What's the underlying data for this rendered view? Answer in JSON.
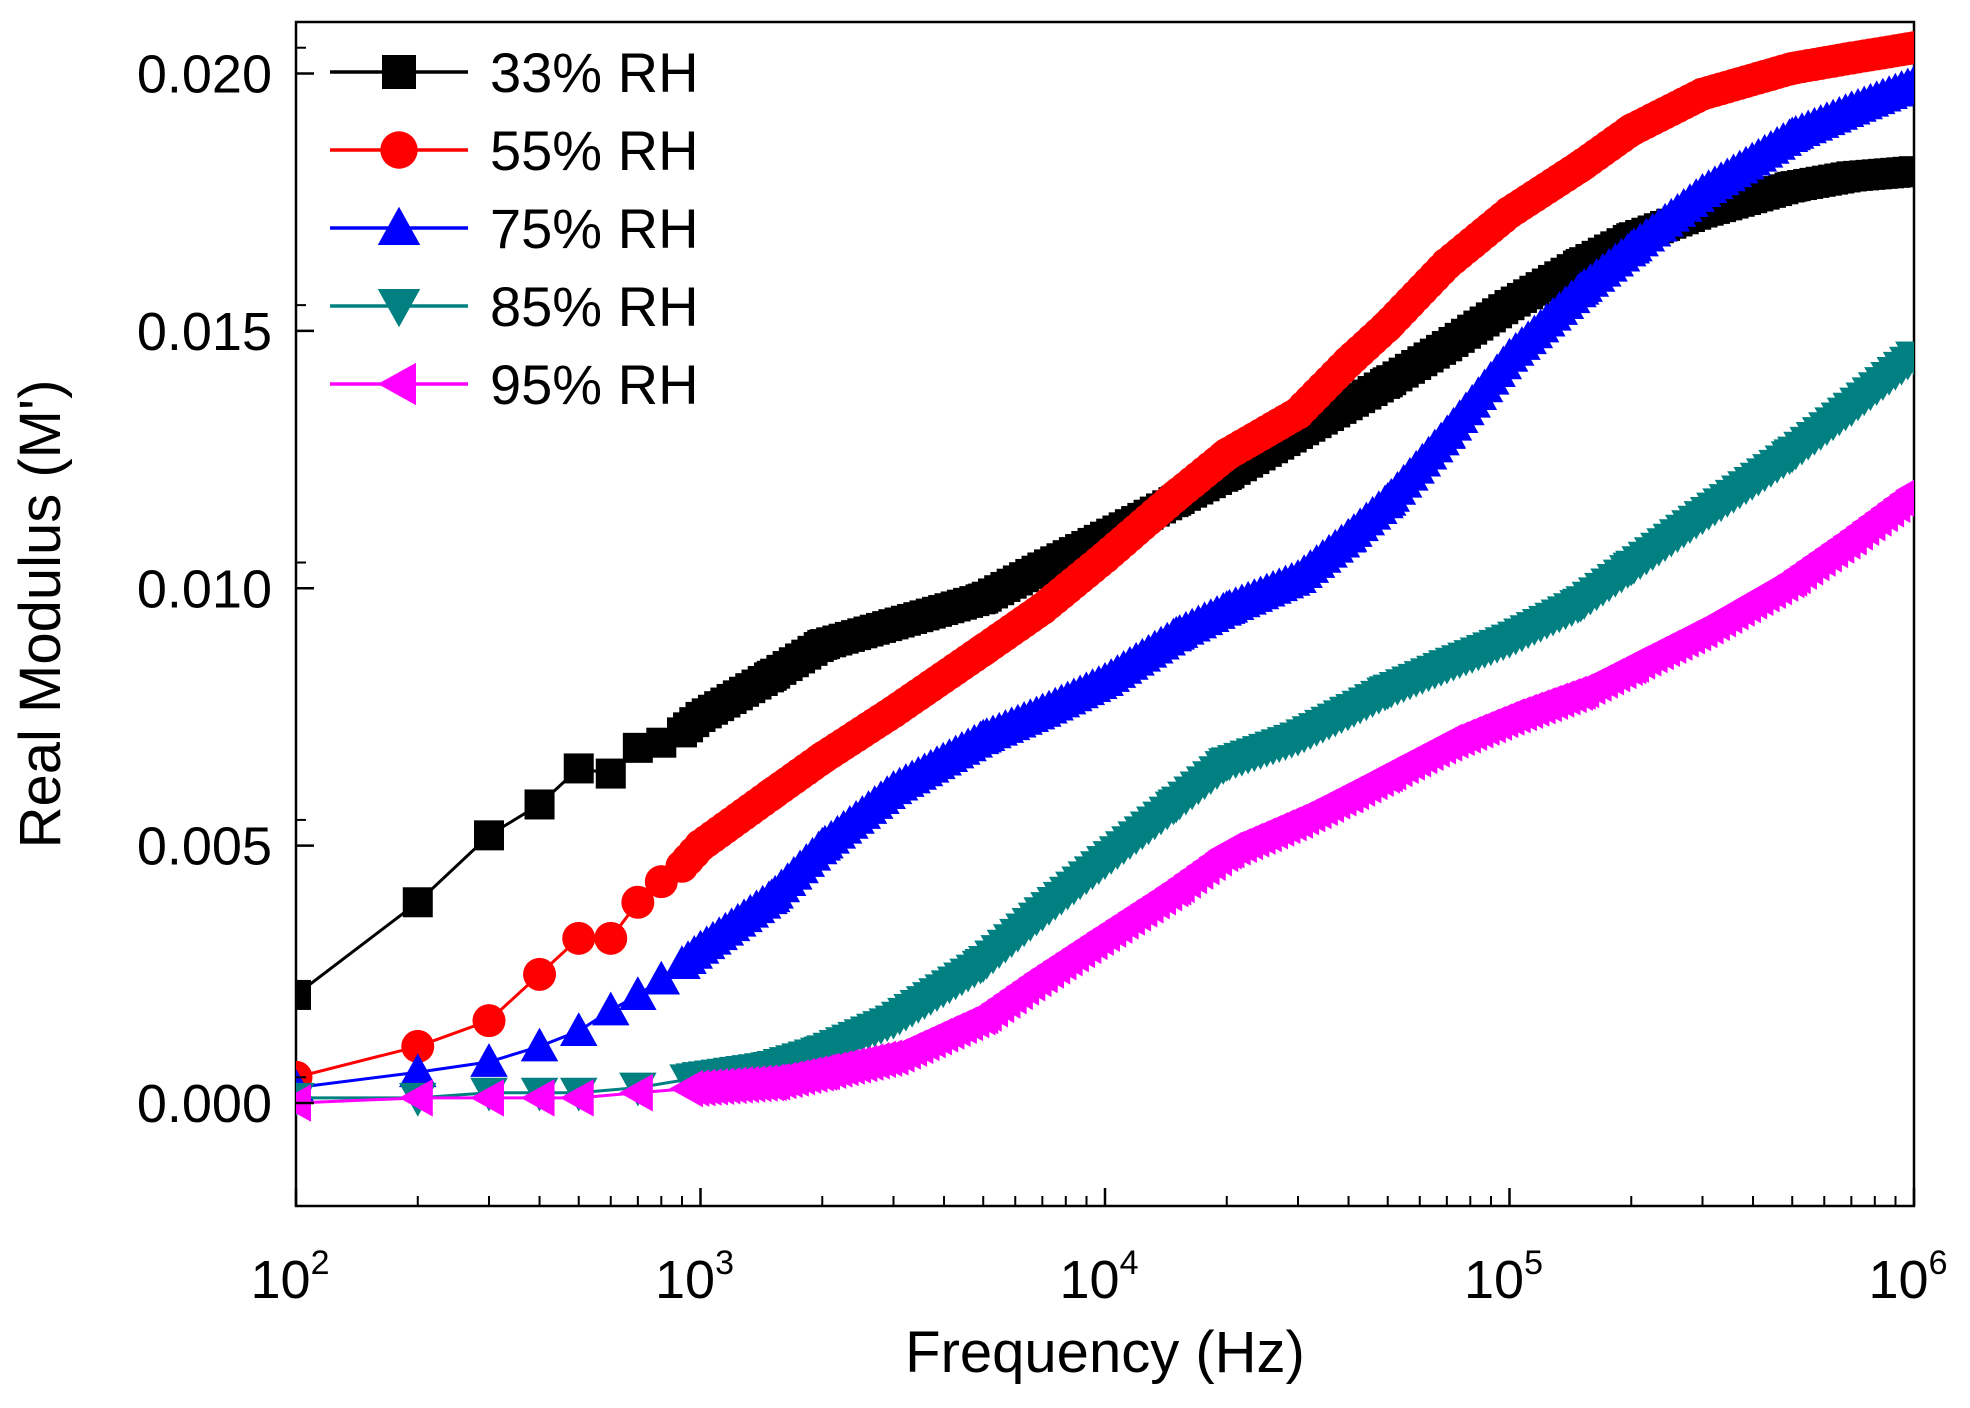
{
  "chart_data": {
    "type": "line",
    "title": "",
    "xlabel": "Frequency (Hz)",
    "ylabel": "Real Modulus (M')",
    "xscale": "log",
    "xlim": [
      100,
      1000000
    ],
    "ylim": [
      -0.002,
      0.021
    ],
    "xticks": [
      {
        "base": "10",
        "exp": "2",
        "value": 100
      },
      {
        "base": "10",
        "exp": "3",
        "value": 1000
      },
      {
        "base": "10",
        "exp": "4",
        "value": 10000
      },
      {
        "base": "10",
        "exp": "5",
        "value": 100000
      },
      {
        "base": "10",
        "exp": "6",
        "value": 1000000
      }
    ],
    "yticks": [
      {
        "label": "0.000",
        "value": 0.0
      },
      {
        "label": "0.005",
        "value": 0.005
      },
      {
        "label": "0.010",
        "value": 0.01
      },
      {
        "label": "0.015",
        "value": 0.015
      },
      {
        "label": "0.020",
        "value": 0.02
      }
    ],
    "legend_position": "top-left",
    "series": [
      {
        "name": "33% RH",
        "color": "#000000",
        "marker": "square",
        "x": [
          100,
          200,
          300,
          400,
          500,
          600,
          700,
          800,
          900,
          1000,
          1500,
          2000,
          3000,
          5000,
          7000,
          10000,
          15000,
          20000,
          30000,
          50000,
          70000,
          100000,
          150000,
          200000,
          300000,
          500000,
          700000,
          1000000
        ],
        "y": [
          0.0021,
          0.0039,
          0.0052,
          0.0058,
          0.0065,
          0.0064,
          0.0069,
          0.007,
          0.0072,
          0.0075,
          0.0083,
          0.0089,
          0.0093,
          0.0098,
          0.0104,
          0.011,
          0.0117,
          0.0122,
          0.013,
          0.014,
          0.0147,
          0.0155,
          0.0163,
          0.0168,
          0.0173,
          0.0178,
          0.018,
          0.0181
        ]
      },
      {
        "name": "55% RH",
        "color": "#ff0000",
        "marker": "circle",
        "x": [
          100,
          200,
          300,
          400,
          500,
          600,
          700,
          800,
          900,
          1000,
          1500,
          2000,
          3000,
          5000,
          7000,
          10000,
          15000,
          20000,
          30000,
          40000,
          50000,
          70000,
          100000,
          150000,
          200000,
          300000,
          500000,
          700000,
          1000000
        ],
        "y": [
          0.0005,
          0.0011,
          0.0016,
          0.0025,
          0.0032,
          0.0032,
          0.0039,
          0.0043,
          0.0046,
          0.005,
          0.006,
          0.0067,
          0.0076,
          0.0088,
          0.0096,
          0.0106,
          0.0118,
          0.0126,
          0.0134,
          0.0144,
          0.0151,
          0.0163,
          0.0173,
          0.0182,
          0.0189,
          0.0196,
          0.0201,
          0.0203,
          0.0205
        ]
      },
      {
        "name": "75% RH",
        "color": "#0000ff",
        "marker": "triangle-up",
        "x": [
          100,
          200,
          300,
          400,
          500,
          600,
          700,
          800,
          900,
          1000,
          1500,
          2000,
          3000,
          5000,
          7000,
          10000,
          15000,
          20000,
          30000,
          40000,
          50000,
          70000,
          100000,
          150000,
          200000,
          300000,
          500000,
          700000,
          1000000
        ],
        "y": [
          0.0003,
          0.0006,
          0.0008,
          0.0011,
          0.0014,
          0.0018,
          0.0021,
          0.0024,
          0.0027,
          0.003,
          0.004,
          0.005,
          0.0061,
          0.0071,
          0.0076,
          0.0082,
          0.0091,
          0.0096,
          0.0102,
          0.011,
          0.0117,
          0.013,
          0.0145,
          0.0158,
          0.0166,
          0.0177,
          0.0188,
          0.0193,
          0.0198
        ]
      },
      {
        "name": "85% RH",
        "color": "#008080",
        "marker": "triangle-down",
        "x": [
          100,
          200,
          300,
          400,
          500,
          700,
          1000,
          1500,
          2000,
          3000,
          5000,
          7000,
          10000,
          15000,
          20000,
          30000,
          40000,
          50000,
          70000,
          100000,
          150000,
          200000,
          300000,
          500000,
          700000,
          1000000
        ],
        "y": [
          0.0001,
          0.0001,
          0.0002,
          0.0002,
          0.0002,
          0.0003,
          0.0005,
          0.0007,
          0.001,
          0.0016,
          0.0027,
          0.0037,
          0.0047,
          0.0058,
          0.0066,
          0.0071,
          0.0076,
          0.008,
          0.0085,
          0.009,
          0.0097,
          0.0104,
          0.0114,
          0.0126,
          0.0135,
          0.0145
        ]
      },
      {
        "name": "95% RH",
        "color": "#ff00ff",
        "marker": "triangle-left",
        "x": [
          100,
          200,
          300,
          400,
          500,
          700,
          1000,
          1500,
          2000,
          3000,
          5000,
          7000,
          10000,
          15000,
          20000,
          30000,
          40000,
          50000,
          70000,
          100000,
          150000,
          200000,
          300000,
          500000,
          700000,
          1000000
        ],
        "y": [
          0.0,
          0.0001,
          0.0001,
          0.0001,
          0.0001,
          0.0002,
          0.0003,
          0.0004,
          0.0006,
          0.0009,
          0.0017,
          0.0025,
          0.0033,
          0.0042,
          0.0049,
          0.0055,
          0.006,
          0.0064,
          0.007,
          0.0075,
          0.008,
          0.0085,
          0.0092,
          0.0102,
          0.011,
          0.0119
        ]
      }
    ]
  }
}
